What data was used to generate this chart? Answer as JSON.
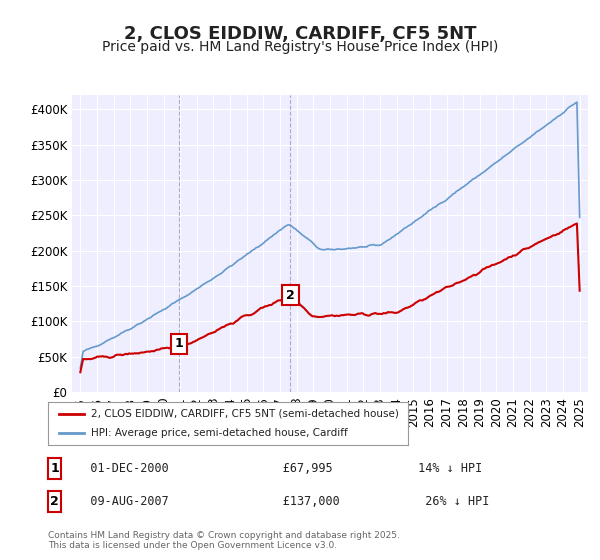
{
  "title": "2, CLOS EIDDIW, CARDIFF, CF5 5NT",
  "subtitle": "Price paid vs. HM Land Registry's House Price Index (HPI)",
  "ylim": [
    0,
    420000
  ],
  "yticks": [
    0,
    50000,
    100000,
    150000,
    200000,
    250000,
    300000,
    350000,
    400000
  ],
  "ytick_labels": [
    "£0",
    "£50K",
    "£100K",
    "£150K",
    "£200K",
    "£250K",
    "£300K",
    "£350K",
    "£400K"
  ],
  "background_color": "#ffffff",
  "plot_bg_color": "#eeeeff",
  "grid_color": "#ffffff",
  "legend_label_red": "2, CLOS EIDDIW, CARDIFF, CF5 5NT (semi-detached house)",
  "legend_label_blue": "HPI: Average price, semi-detached house, Cardiff",
  "red_color": "#cc0000",
  "blue_color": "#6699cc",
  "marker1_year": 2000.92,
  "marker1_price": 67995,
  "marker1_label": "1",
  "marker2_year": 2007.62,
  "marker2_price": 137000,
  "marker2_label": "2",
  "vline_color": "#aaaacc",
  "table_data": [
    [
      "1",
      "01-DEC-2000",
      "£67,995",
      "14% ↓ HPI"
    ],
    [
      "2",
      "09-AUG-2007",
      "£137,000",
      "26% ↓ HPI"
    ]
  ],
  "footer_text": "Contains HM Land Registry data © Crown copyright and database right 2025.\nThis data is licensed under the Open Government Licence v3.0.",
  "title_fontsize": 13,
  "subtitle_fontsize": 10,
  "tick_fontsize": 8.5,
  "xtick_years": [
    1995,
    1996,
    1997,
    1998,
    1999,
    2000,
    2001,
    2002,
    2003,
    2004,
    2005,
    2006,
    2007,
    2008,
    2009,
    2010,
    2011,
    2012,
    2013,
    2014,
    2015,
    2016,
    2017,
    2018,
    2019,
    2020,
    2021,
    2022,
    2023,
    2024,
    2025
  ],
  "xlim": [
    1994.5,
    2025.5
  ]
}
